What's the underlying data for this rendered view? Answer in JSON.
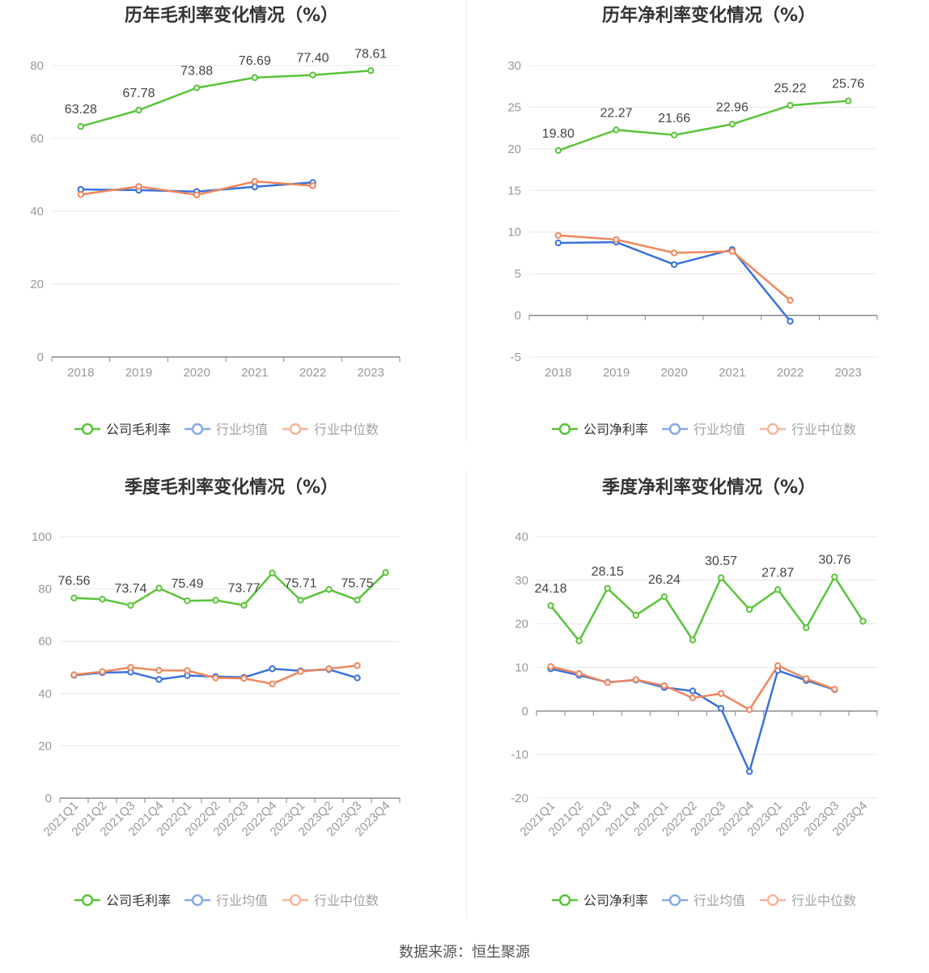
{
  "source": "数据来源：恒生聚源",
  "colors": {
    "company": "#5ac43a",
    "avg": "#3a72dc",
    "median": "#f0865c",
    "grid": "#e6e8ee",
    "axis": "#888888",
    "text": "#999999"
  },
  "chart_data": [
    {
      "type": "line",
      "title": "历年毛利率变化情况（%）",
      "categories": [
        "2018",
        "2019",
        "2020",
        "2021",
        "2022",
        "2023"
      ],
      "ylim": [
        0,
        80
      ],
      "yticks": [
        0,
        20,
        40,
        60,
        80
      ],
      "label_series": 0,
      "label_points": [
        0,
        1,
        2,
        3,
        4,
        5
      ],
      "series": [
        {
          "name": "公司毛利率",
          "values": [
            63.28,
            67.78,
            73.88,
            76.69,
            77.4,
            78.61
          ]
        },
        {
          "name": "行业均值",
          "values": [
            46.0,
            45.8,
            45.4,
            46.7,
            47.9,
            null
          ]
        },
        {
          "name": "行业中位数",
          "values": [
            44.6,
            46.8,
            44.5,
            48.2,
            47.0,
            null
          ]
        }
      ]
    },
    {
      "type": "line",
      "title": "历年净利率变化情况（%）",
      "categories": [
        "2018",
        "2019",
        "2020",
        "2021",
        "2022",
        "2023"
      ],
      "ylim": [
        -5,
        30
      ],
      "yticks": [
        -5,
        0,
        5,
        10,
        15,
        20,
        25,
        30
      ],
      "label_series": 0,
      "label_points": [
        0,
        1,
        2,
        3,
        4,
        5
      ],
      "series": [
        {
          "name": "公司净利率",
          "values": [
            19.8,
            22.27,
            21.66,
            22.96,
            25.22,
            25.76
          ]
        },
        {
          "name": "行业均值",
          "values": [
            8.7,
            8.8,
            6.1,
            7.9,
            -0.7,
            null
          ]
        },
        {
          "name": "行业中位数",
          "values": [
            9.6,
            9.1,
            7.5,
            7.7,
            1.8,
            null
          ]
        }
      ]
    },
    {
      "type": "line",
      "title": "季度毛利率变化情况（%）",
      "categories": [
        "2021Q1",
        "2021Q2",
        "2021Q3",
        "2021Q4",
        "2022Q1",
        "2022Q2",
        "2022Q3",
        "2022Q4",
        "2023Q1",
        "2023Q2",
        "2023Q3",
        "2023Q4"
      ],
      "ylim": [
        0,
        100
      ],
      "yticks": [
        0,
        20,
        40,
        60,
        80,
        100
      ],
      "label_series": 0,
      "label_points": [
        0,
        2,
        4,
        6,
        8,
        10
      ],
      "series": [
        {
          "name": "公司毛利率",
          "values": [
            76.56,
            76.1,
            73.74,
            80.3,
            75.49,
            75.7,
            73.77,
            86.1,
            75.71,
            79.8,
            75.75,
            86.3
          ]
        },
        {
          "name": "行业均值",
          "values": [
            47.0,
            48.0,
            48.2,
            45.4,
            46.9,
            46.5,
            46.2,
            49.5,
            48.7,
            49.2,
            46.0,
            null
          ]
        },
        {
          "name": "行业中位数",
          "values": [
            47.2,
            48.4,
            50.0,
            48.9,
            48.8,
            46.0,
            45.8,
            43.7,
            48.4,
            49.5,
            50.7,
            null
          ]
        }
      ]
    },
    {
      "type": "line",
      "title": "季度净利率变化情况（%）",
      "categories": [
        "2021Q1",
        "2021Q2",
        "2021Q3",
        "2021Q4",
        "2022Q1",
        "2022Q2",
        "2022Q3",
        "2022Q4",
        "2023Q1",
        "2023Q2",
        "2023Q3",
        "2023Q4"
      ],
      "ylim": [
        -20,
        40
      ],
      "yticks": [
        -20,
        -10,
        0,
        10,
        20,
        30,
        40
      ],
      "label_series": 0,
      "label_points": [
        0,
        2,
        4,
        6,
        8,
        10
      ],
      "series": [
        {
          "name": "公司净利率",
          "values": [
            24.18,
            16.1,
            28.15,
            22.0,
            26.24,
            16.3,
            30.57,
            23.3,
            27.87,
            19.1,
            30.76,
            20.6
          ]
        },
        {
          "name": "行业均值",
          "values": [
            9.7,
            8.2,
            6.6,
            7.1,
            5.4,
            4.6,
            0.6,
            -13.9,
            9.3,
            7.0,
            4.9,
            null
          ]
        },
        {
          "name": "行业中位数",
          "values": [
            10.2,
            8.6,
            6.5,
            7.2,
            5.8,
            3.0,
            4.0,
            0.3,
            10.4,
            7.4,
            5.0,
            null
          ]
        }
      ]
    }
  ]
}
